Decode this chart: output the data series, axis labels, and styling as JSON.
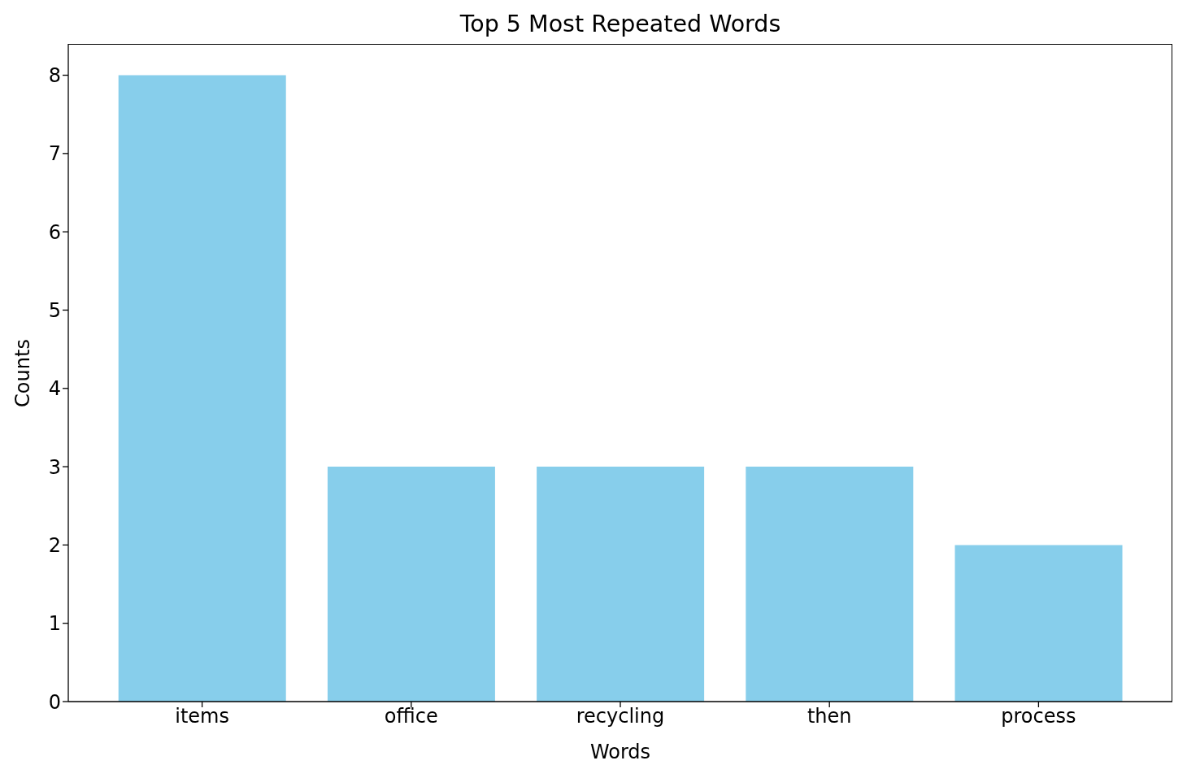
{
  "chart_data": {
    "type": "bar",
    "title": "Top 5 Most Repeated Words",
    "xlabel": "Words",
    "ylabel": "Counts",
    "categories": [
      "items",
      "office",
      "recycling",
      "then",
      "process"
    ],
    "values": [
      8,
      3,
      3,
      3,
      2
    ],
    "color": "#87ceeb",
    "ylim": [
      0,
      8.4
    ],
    "yticks": [
      0,
      1,
      2,
      3,
      4,
      5,
      6,
      7,
      8
    ]
  }
}
